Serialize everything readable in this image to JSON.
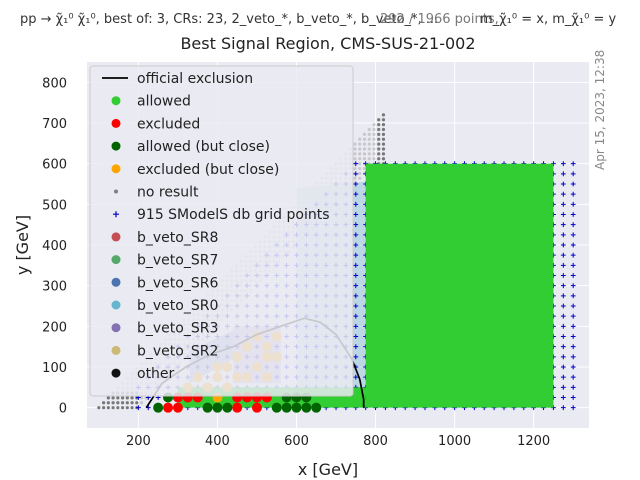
{
  "header": {
    "process_text": "pp → χ̃₁⁰ χ̃₁⁰,  best of: 3,  CRs: 23,  2_veto_*, b_veto_*, b_veto_*, ...",
    "points_text": "292 / 1966 points,",
    "params_text": "m_χ̃₁⁰ = x, m_χ̃₁⁰ = y",
    "timestamp": "Apr 15, 2023, 12:38"
  },
  "chart_data": {
    "type": "scatter",
    "title": "Best Signal Region, CMS-SUS-21-002",
    "xlabel": "x [GeV]",
    "ylabel": "y [GeV]",
    "xlim": [
      70,
      1340
    ],
    "ylim": [
      -50,
      850
    ],
    "xticks": [
      200,
      400,
      600,
      800,
      1000,
      1200
    ],
    "yticks": [
      0,
      100,
      200,
      300,
      400,
      500,
      600,
      700,
      800
    ],
    "grid": true,
    "legend_position": "top-left",
    "legend": [
      {
        "label": "official exclusion",
        "kind": "line",
        "color": "#000000"
      },
      {
        "label": "allowed",
        "kind": "dot",
        "color": "#32cd32"
      },
      {
        "label": "excluded",
        "kind": "dot",
        "color": "#ff0000"
      },
      {
        "label": "allowed (but close)",
        "kind": "dot",
        "color": "#006400"
      },
      {
        "label": "excluded (but close)",
        "kind": "dot",
        "color": "#ffa500"
      },
      {
        "label": "no result",
        "kind": "small",
        "color": "#808080"
      },
      {
        "label": "915 SModelS db grid points",
        "kind": "plus",
        "color": "#0000cd"
      },
      {
        "label": "b_veto_SR8",
        "kind": "dot",
        "color": "#c44e52"
      },
      {
        "label": "b_veto_SR7",
        "kind": "dot",
        "color": "#55a868"
      },
      {
        "label": "b_veto_SR6",
        "kind": "dot",
        "color": "#4c72b0"
      },
      {
        "label": "b_veto_SR0",
        "kind": "dot",
        "color": "#64b5cd"
      },
      {
        "label": "b_veto_SR3",
        "kind": "dot",
        "color": "#8172b2"
      },
      {
        "label": "b_veto_SR2",
        "kind": "dot",
        "color": "#ccb974"
      },
      {
        "label": "other",
        "kind": "dot",
        "color": "#111111"
      }
    ],
    "regions": [
      {
        "name": "b_veto_SR0",
        "color": "#64b5cd",
        "polygon": [
          [
            150,
            0
          ],
          [
            600,
            0
          ],
          [
            600,
            540
          ],
          [
            1250,
            600
          ],
          [
            1250,
            0
          ]
        ]
      },
      {
        "name": "b_veto_SR6",
        "color": "#4c72b0",
        "polygon": [
          [
            330,
            60
          ],
          [
            440,
            120
          ],
          [
            440,
            190
          ],
          [
            330,
            140
          ]
        ]
      },
      {
        "name": "b_veto_SR3",
        "color": "#8172b2",
        "polygon": [
          [
            440,
            60
          ],
          [
            560,
            60
          ],
          [
            560,
            200
          ],
          [
            440,
            200
          ]
        ]
      }
    ],
    "official_exclusion": {
      "x": [
        220,
        260,
        320,
        380,
        440,
        500,
        560,
        620,
        660,
        700,
        740,
        760,
        770,
        770
      ],
      "y": [
        0,
        60,
        100,
        130,
        150,
        180,
        200,
        220,
        210,
        180,
        120,
        70,
        20,
        0
      ]
    },
    "grid_points": {
      "x_range": [
        200,
        1300
      ],
      "x_step": 25,
      "y_range": [
        0,
        600
      ],
      "y_step": 25
    },
    "allowed_block": {
      "x_range": [
        775,
        1250
      ],
      "y_range": [
        0,
        600
      ]
    },
    "allowed_strip": {
      "x_range": [
        300,
        775
      ],
      "y_range": [
        0,
        50
      ]
    },
    "excluded_points": [
      [
        300,
        25
      ],
      [
        325,
        25
      ],
      [
        350,
        25
      ],
      [
        450,
        25
      ],
      [
        475,
        25
      ],
      [
        500,
        25
      ],
      [
        525,
        25
      ],
      [
        275,
        0
      ],
      [
        300,
        0
      ],
      [
        450,
        0
      ],
      [
        500,
        0
      ]
    ],
    "excluded_close_points": [
      [
        325,
        50
      ],
      [
        350,
        75
      ],
      [
        400,
        75
      ],
      [
        400,
        100
      ],
      [
        425,
        100
      ],
      [
        450,
        125
      ],
      [
        475,
        150
      ],
      [
        500,
        175
      ],
      [
        525,
        150
      ],
      [
        550,
        175
      ],
      [
        525,
        125
      ],
      [
        400,
        25
      ],
      [
        425,
        50
      ],
      [
        375,
        50
      ],
      [
        450,
        75
      ],
      [
        475,
        75
      ],
      [
        500,
        100
      ],
      [
        550,
        125
      ],
      [
        525,
        75
      ]
    ],
    "allowed_close_points": [
      [
        250,
        0
      ],
      [
        275,
        25
      ],
      [
        375,
        0
      ],
      [
        400,
        0
      ],
      [
        425,
        0
      ],
      [
        550,
        0
      ],
      [
        575,
        0
      ],
      [
        600,
        0
      ],
      [
        625,
        0
      ],
      [
        650,
        0
      ],
      [
        575,
        25
      ],
      [
        600,
        25
      ],
      [
        625,
        25
      ]
    ],
    "no_result_points": "diagonal band above grid: x from 100 to 820, y up to x-100"
  }
}
